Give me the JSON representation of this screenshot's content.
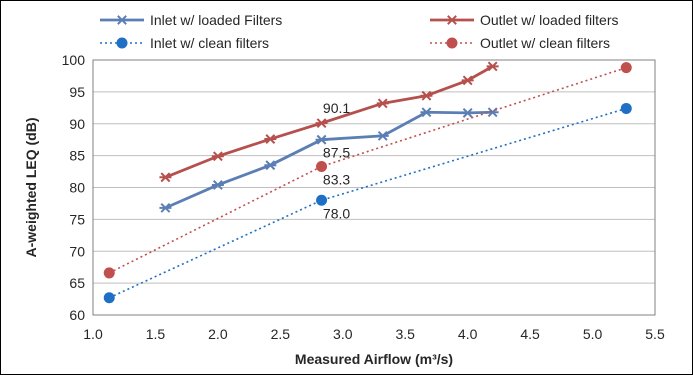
{
  "chart_data": {
    "type": "line",
    "xlabel": "Measured Airflow (m³/s)",
    "ylabel": "A-weighted LEQ (dB)",
    "xlim": [
      1.0,
      5.5
    ],
    "ylim": [
      60,
      100
    ],
    "xticks": [
      "1.0",
      "1.5",
      "2.0",
      "2.5",
      "3.0",
      "3.5",
      "4.0",
      "4.5",
      "5.0",
      "5.5"
    ],
    "yticks": [
      "60",
      "65",
      "70",
      "75",
      "80",
      "85",
      "90",
      "95",
      "100"
    ],
    "grid": "horizontal",
    "legend_position": "top",
    "series": [
      {
        "name": "Inlet w/ loaded Filters",
        "style": "solid",
        "marker": "star",
        "color": "#5b7fb4",
        "points": [
          [
            1.58,
            76.8
          ],
          [
            2.0,
            80.4
          ],
          [
            2.42,
            83.5
          ],
          [
            2.83,
            87.5
          ],
          [
            3.32,
            88.1
          ],
          [
            3.67,
            91.8
          ],
          [
            4.0,
            91.7
          ],
          [
            4.2,
            91.8
          ]
        ]
      },
      {
        "name": "Outlet w/ loaded filters",
        "style": "solid",
        "marker": "star",
        "color": "#b5504c",
        "points": [
          [
            1.58,
            81.6
          ],
          [
            2.0,
            84.9
          ],
          [
            2.42,
            87.6
          ],
          [
            2.83,
            90.1
          ],
          [
            3.32,
            93.2
          ],
          [
            3.67,
            94.4
          ],
          [
            4.0,
            96.8
          ],
          [
            4.2,
            99.0
          ]
        ]
      },
      {
        "name": "Inlet w/ clean filters",
        "style": "dotted",
        "marker": "circle",
        "color": "#1f6fc4",
        "points": [
          [
            1.13,
            62.7
          ],
          [
            2.83,
            78.0
          ],
          [
            5.27,
            92.4
          ]
        ]
      },
      {
        "name": "Outlet w/ clean filters",
        "style": "dotted",
        "marker": "circle",
        "color": "#c0504d",
        "points": [
          [
            1.13,
            66.6
          ],
          [
            2.83,
            83.3
          ],
          [
            5.27,
            98.8
          ]
        ]
      }
    ],
    "annotations": [
      {
        "text": "90.1",
        "x": 2.83,
        "y": 90.1,
        "anchor": "above"
      },
      {
        "text": "87.5",
        "x": 2.83,
        "y": 87.5,
        "anchor": "below"
      },
      {
        "text": "83.3",
        "x": 2.83,
        "y": 83.3,
        "anchor": "below"
      },
      {
        "text": "78.0",
        "x": 2.83,
        "y": 78.0,
        "anchor": "below"
      }
    ]
  }
}
